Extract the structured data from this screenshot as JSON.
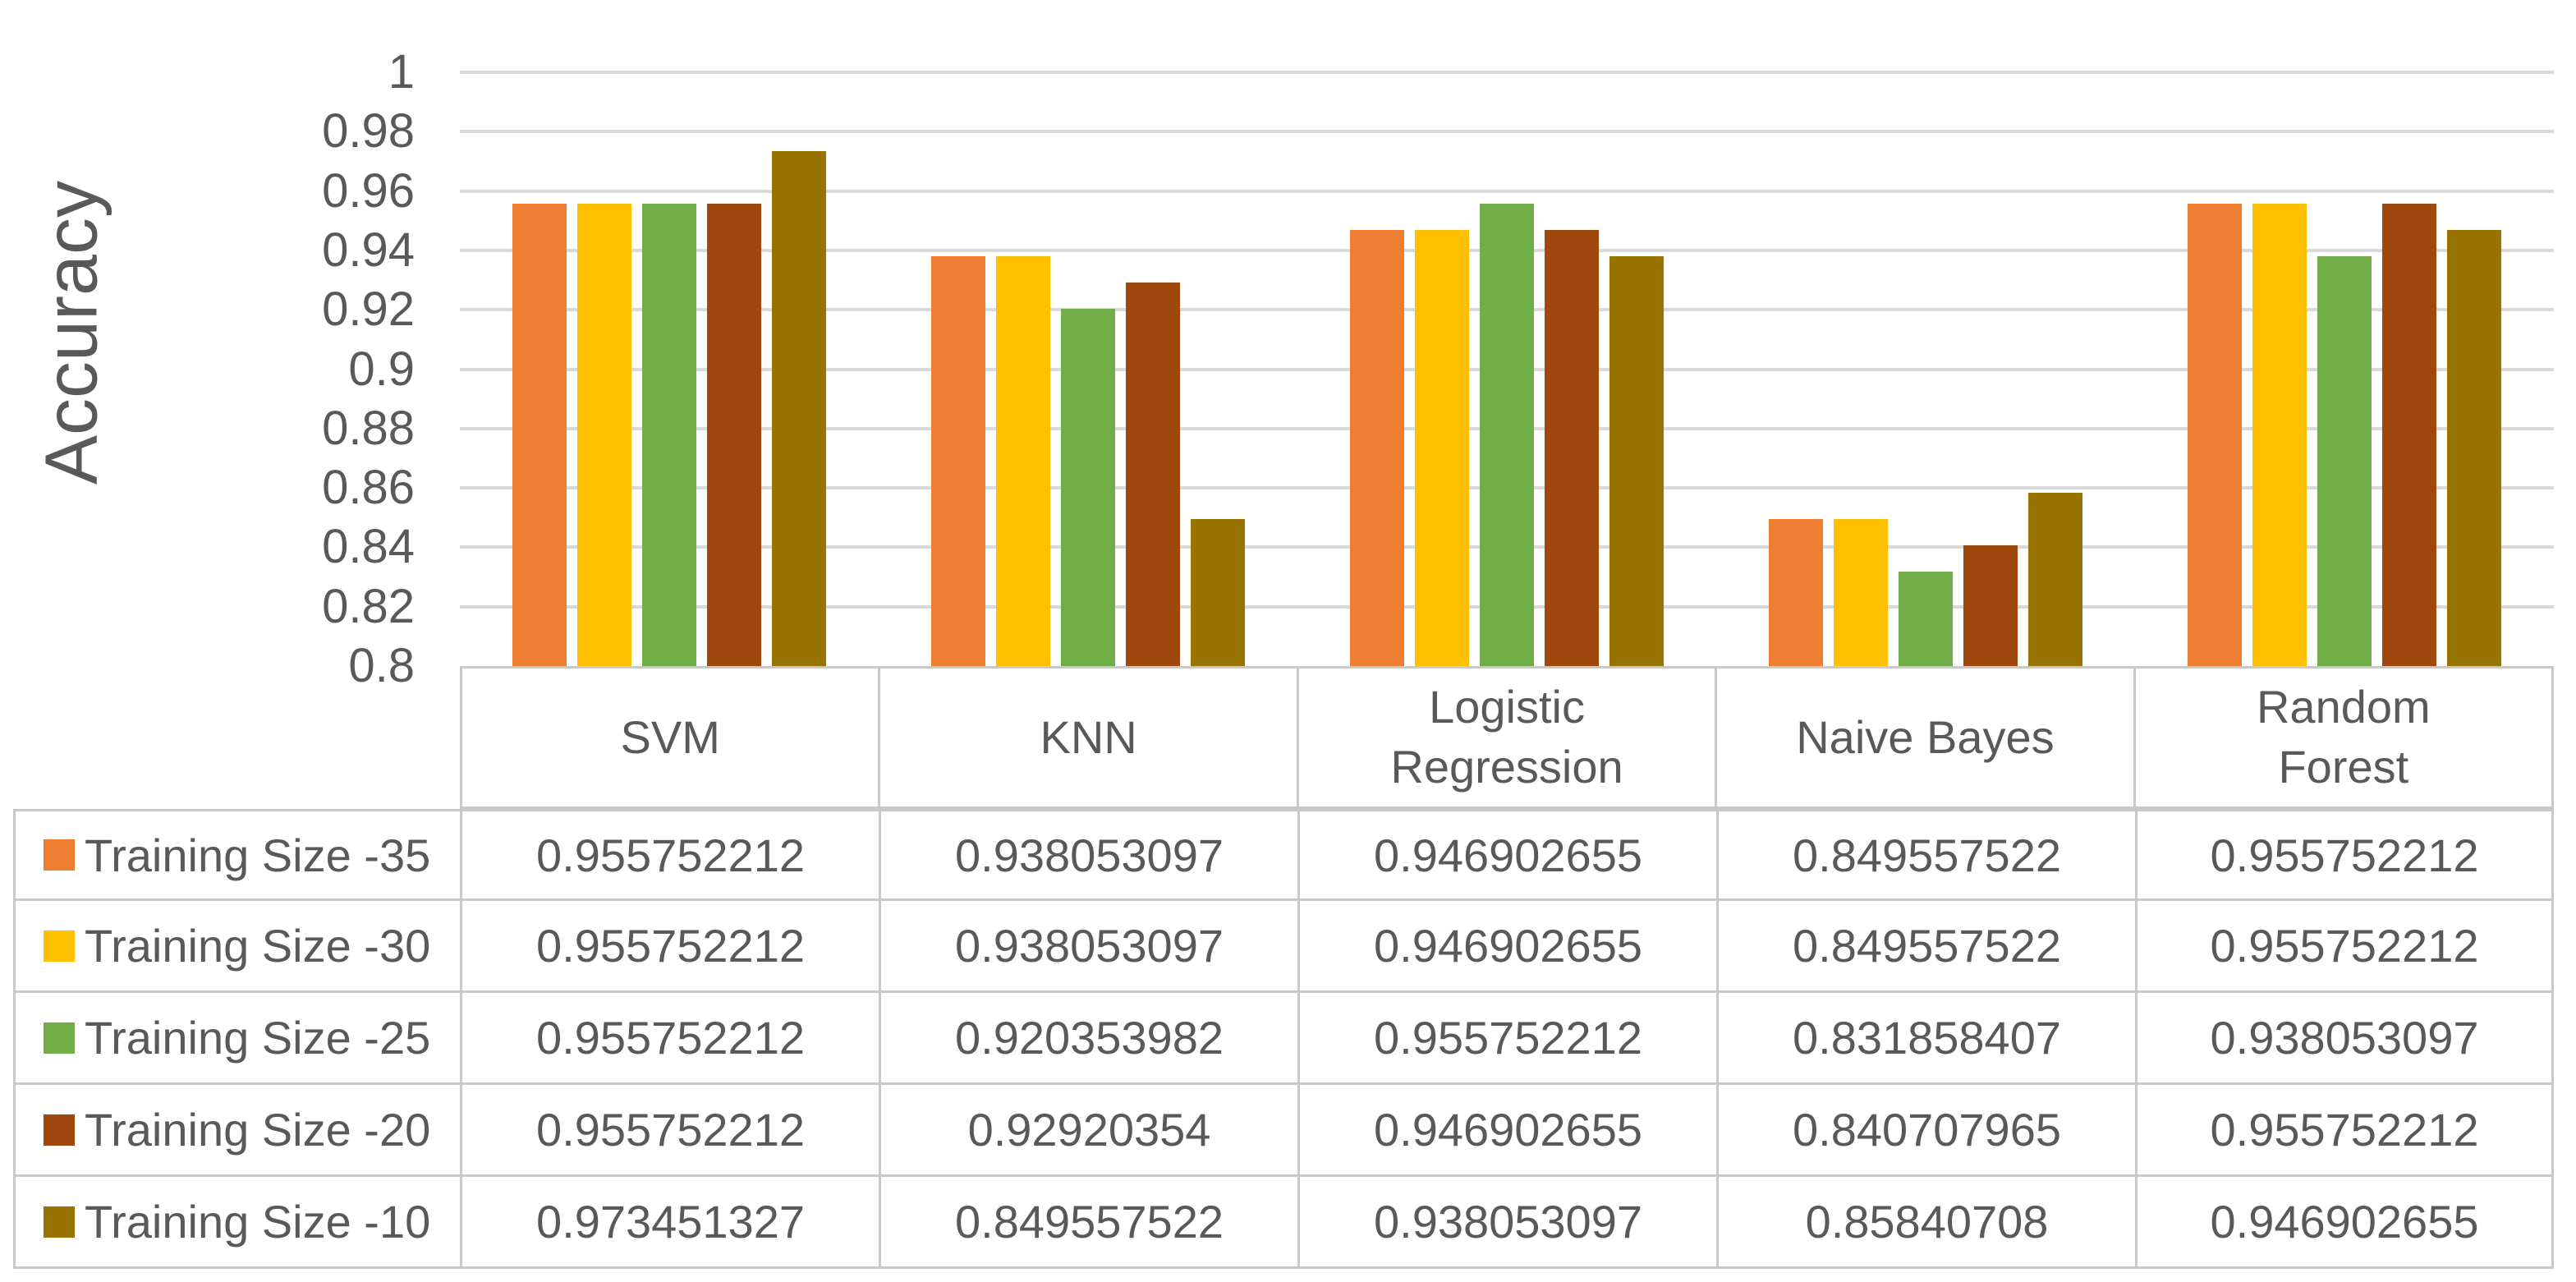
{
  "chart_data": {
    "type": "bar",
    "title": "",
    "xlabel": "",
    "ylabel": "Accuracy",
    "categories": [
      "SVM",
      "KNN",
      "Logistic Regression",
      "Naive Bayes",
      "Random Forest"
    ],
    "series": [
      {
        "name": "Training Size -35",
        "color": "#ED7D31",
        "values": [
          0.955752212,
          0.938053097,
          0.946902655,
          0.849557522,
          0.955752212
        ]
      },
      {
        "name": "Training Size -30",
        "color": "#FFC000",
        "values": [
          0.955752212,
          0.938053097,
          0.946902655,
          0.849557522,
          0.955752212
        ]
      },
      {
        "name": "Training Size -25",
        "color": "#70AD47",
        "values": [
          0.955752212,
          0.920353982,
          0.955752212,
          0.831858407,
          0.938053097
        ]
      },
      {
        "name": "Training Size -20",
        "color": "#9E480E",
        "values": [
          0.955752212,
          0.92920354,
          0.946902655,
          0.840707965,
          0.955752212
        ]
      },
      {
        "name": "Training Size -10",
        "color": "#997300",
        "values": [
          0.973451327,
          0.849557522,
          0.938053097,
          0.85840708,
          0.946902655
        ]
      }
    ],
    "ylim": [
      0.8,
      1
    ],
    "yticks": [
      1,
      0.98,
      0.96,
      0.94,
      0.92,
      0.9,
      0.88,
      0.86,
      0.84,
      0.82,
      0.8
    ],
    "grid": true,
    "legend_position": "data-table-left-column",
    "data_table_shown": true
  },
  "styles": {
    "text_color": "#595959",
    "gridline_color": "#D9D9D9",
    "table_border_color": "#C9C9C9",
    "background": "#FFFFFF"
  }
}
